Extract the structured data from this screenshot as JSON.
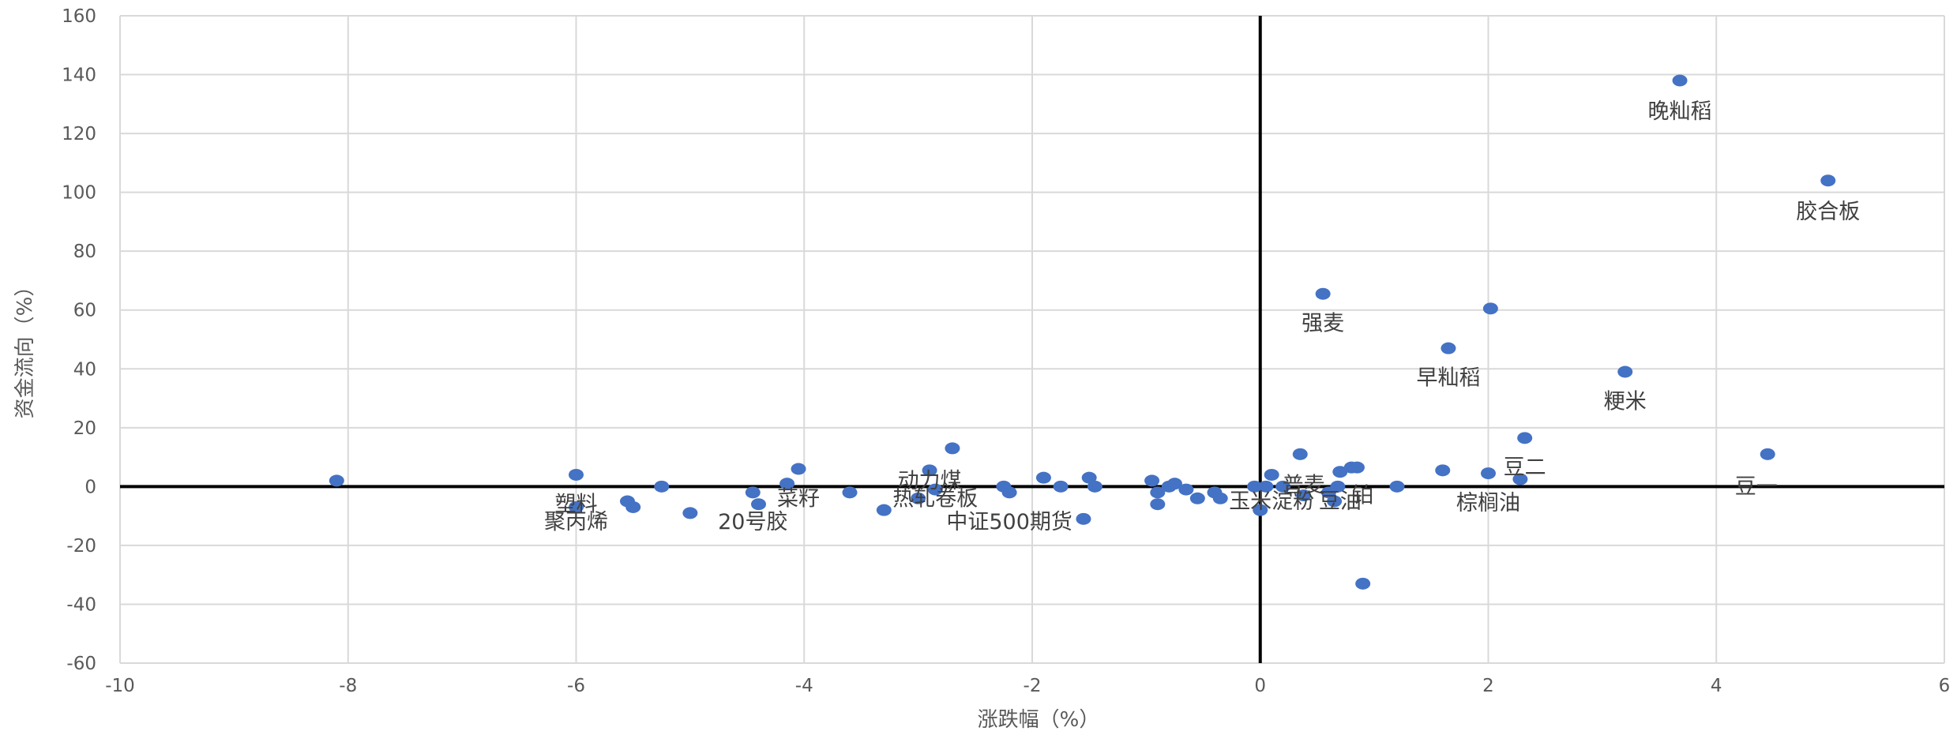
{
  "chart_data": {
    "type": "scatter",
    "title": "",
    "xlabel": "涨跌幅（%）",
    "ylabel": "资金流向（%）",
    "xlim": [
      -10,
      6
    ],
    "ylim": [
      -60,
      160
    ],
    "xticks": [
      -10,
      -8,
      -6,
      -4,
      -2,
      0,
      2,
      4,
      6
    ],
    "yticks": [
      -60,
      -40,
      -20,
      0,
      20,
      40,
      60,
      80,
      100,
      120,
      140,
      160
    ],
    "grid": "vertical and horizontal gridlines",
    "marker_color": "#4472C4",
    "axis_color": "#000000",
    "grid_color": "#D9D9D9",
    "points": [
      {
        "x": -8.1,
        "y": 2
      },
      {
        "x": -6.0,
        "y": 4
      },
      {
        "x": -6.0,
        "y": -7
      },
      {
        "x": -5.55,
        "y": -5
      },
      {
        "x": -5.5,
        "y": -7
      },
      {
        "x": -5.25,
        "y": 0
      },
      {
        "x": -5.0,
        "y": -9
      },
      {
        "x": -4.45,
        "y": -2
      },
      {
        "x": -4.4,
        "y": -6
      },
      {
        "x": -4.15,
        "y": 1
      },
      {
        "x": -4.05,
        "y": 6
      },
      {
        "x": -3.6,
        "y": -2
      },
      {
        "x": -3.3,
        "y": -8
      },
      {
        "x": -3.0,
        "y": -4
      },
      {
        "x": -2.9,
        "y": 5.5
      },
      {
        "x": -2.85,
        "y": -1
      },
      {
        "x": -2.7,
        "y": 13
      },
      {
        "x": -2.25,
        "y": 0
      },
      {
        "x": -2.2,
        "y": -2
      },
      {
        "x": -1.9,
        "y": 3
      },
      {
        "x": -1.75,
        "y": 0
      },
      {
        "x": -1.55,
        "y": -11
      },
      {
        "x": -1.5,
        "y": 3
      },
      {
        "x": -1.45,
        "y": 0
      },
      {
        "x": -0.95,
        "y": 2
      },
      {
        "x": -0.9,
        "y": -6
      },
      {
        "x": -0.9,
        "y": -2
      },
      {
        "x": -0.8,
        "y": 0
      },
      {
        "x": -0.75,
        "y": 1
      },
      {
        "x": -0.65,
        "y": -1
      },
      {
        "x": -0.55,
        "y": -4
      },
      {
        "x": -0.4,
        "y": -2
      },
      {
        "x": -0.35,
        "y": -4
      },
      {
        "x": -0.05,
        "y": 0
      },
      {
        "x": 0.0,
        "y": -8
      },
      {
        "x": 0.05,
        "y": 0
      },
      {
        "x": 0.1,
        "y": 4
      },
      {
        "x": 0.2,
        "y": 0
      },
      {
        "x": 0.35,
        "y": 11
      },
      {
        "x": 0.38,
        "y": -3
      },
      {
        "x": 0.55,
        "y": 65.5
      },
      {
        "x": 0.6,
        "y": -2
      },
      {
        "x": 0.65,
        "y": -5
      },
      {
        "x": 0.68,
        "y": 0
      },
      {
        "x": 0.7,
        "y": 5
      },
      {
        "x": 0.8,
        "y": 6.5
      },
      {
        "x": 0.85,
        "y": 6.5
      },
      {
        "x": 0.9,
        "y": -33
      },
      {
        "x": 1.2,
        "y": 0
      },
      {
        "x": 1.6,
        "y": 5.5
      },
      {
        "x": 1.65,
        "y": 47
      },
      {
        "x": 2.0,
        "y": 4.5
      },
      {
        "x": 2.02,
        "y": 60.5
      },
      {
        "x": 2.28,
        "y": 2.5
      },
      {
        "x": 2.32,
        "y": 16.5
      },
      {
        "x": 3.2,
        "y": 39
      },
      {
        "x": 3.68,
        "y": 138
      },
      {
        "x": 4.45,
        "y": 11
      },
      {
        "x": 4.98,
        "y": 104
      }
    ],
    "labels": [
      {
        "text": "晚籼稻",
        "x": 3.68,
        "y": 127.5
      },
      {
        "text": "胶合板",
        "x": 4.98,
        "y": 93.5
      },
      {
        "text": "强麦",
        "x": 0.55,
        "y": 55.5
      },
      {
        "text": "早籼稻",
        "x": 1.65,
        "y": 37
      },
      {
        "text": "粳米",
        "x": 3.2,
        "y": 29
      },
      {
        "text": "豆二",
        "x": 2.32,
        "y": 6.5
      },
      {
        "text": "豆一",
        "x": 4.35,
        "y": 0
      },
      {
        "text": "棕榈油",
        "x": 2.0,
        "y": -5.5
      },
      {
        "text": "动力煤",
        "x": -2.9,
        "y": 2
      },
      {
        "text": "热轧卷板",
        "x": -2.85,
        "y": -4
      },
      {
        "text": "中证500期货",
        "x": -2.2,
        "y": -12
      },
      {
        "text": "菜籽",
        "x": -4.05,
        "y": -4
      },
      {
        "text": "塑料",
        "x": -6.0,
        "y": -6
      },
      {
        "text": "聚丙烯",
        "x": -6.0,
        "y": -12
      },
      {
        "text": "20号胶",
        "x": -4.45,
        "y": -12
      },
      {
        "text": "玉米淀粉",
        "x": 0.1,
        "y": -5
      },
      {
        "text": "普麦",
        "x": 0.38,
        "y": 0.5
      },
      {
        "text": "铂",
        "x": 0.9,
        "y": -3
      },
      {
        "text": "豆油",
        "x": 0.7,
        "y": -5
      }
    ]
  }
}
